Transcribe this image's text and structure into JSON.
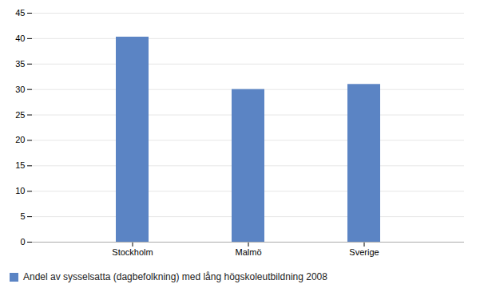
{
  "chart_data": {
    "type": "bar",
    "categories": [
      "Stockholm",
      "Malmö",
      "Sverige"
    ],
    "series": [
      {
        "name": "Andel av sysselsatta (dagbefolkning) med lång högskoleutbildning 2008",
        "color": "#5b84c4",
        "values": [
          40.3,
          30.0,
          31.0
        ]
      }
    ],
    "ylim": [
      0,
      45
    ],
    "yticks": [
      0,
      5,
      10,
      15,
      20,
      25,
      30,
      35,
      40,
      45
    ],
    "grid": true,
    "legend": "lower left"
  }
}
